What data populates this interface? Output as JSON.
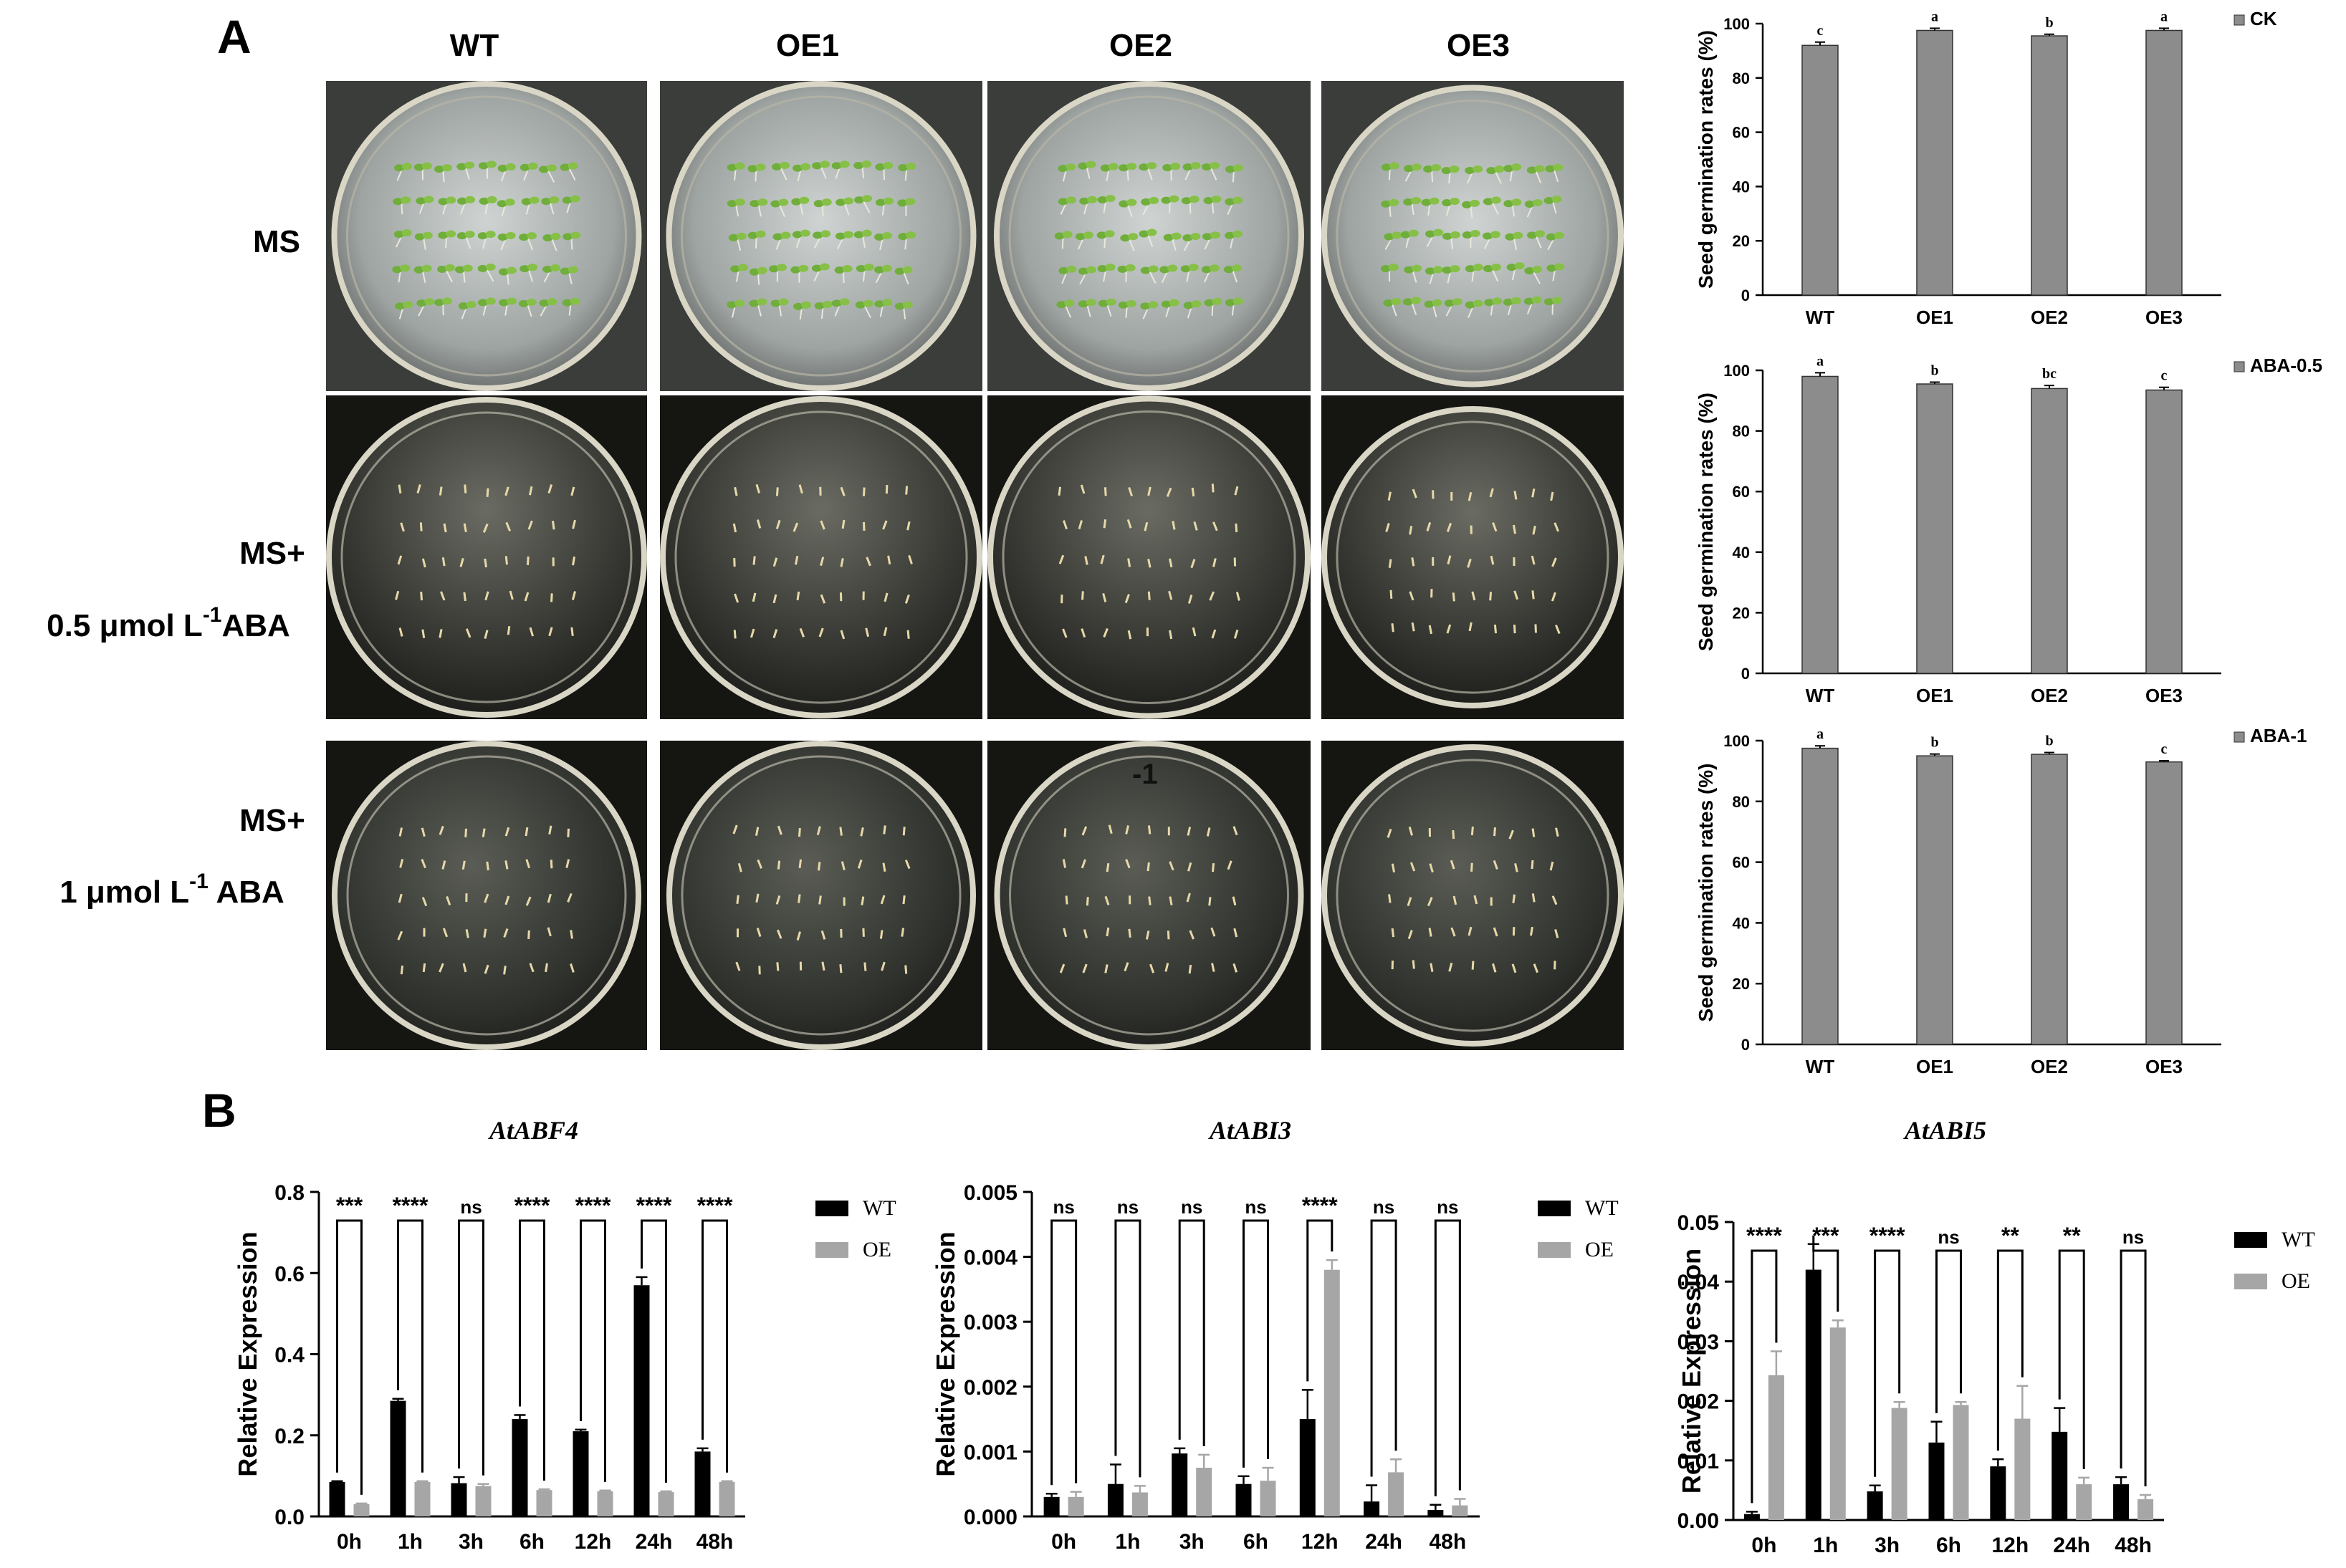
{
  "panel_labels": [
    "A",
    "B"
  ],
  "photo_grid": {
    "columns": [
      "WT",
      "OE1",
      "OE2",
      "OE3"
    ],
    "rows": [
      {
        "label_lines": [
          {
            "text": "MS",
            "sup": ""
          }
        ]
      },
      {
        "label_lines": [
          {
            "text": "MS+",
            "sup": ""
          },
          {
            "text": "0.5 μmol L",
            "sup": "-1",
            "after": "ABA"
          }
        ]
      },
      {
        "label_lines": [
          {
            "text": "MS+",
            "sup": ""
          },
          {
            "text": "1 μmol L",
            "sup": "-1",
            "after": " ABA"
          }
        ]
      }
    ],
    "stray_plate_text": "-1"
  },
  "chart_data": [
    {
      "type": "bar",
      "panel": "A",
      "categories": [
        "WT",
        "OE1",
        "OE2",
        "OE3"
      ],
      "series": [
        {
          "name": "CK",
          "values": [
            92,
            97.5,
            95.5,
            97.5
          ],
          "errors": [
            1.2,
            0.8,
            0.6,
            0.8
          ]
        }
      ],
      "letters": [
        "c",
        "a",
        "b",
        "a"
      ],
      "ylabel": "Seed germination rates (%)",
      "ylim": [
        0,
        100
      ],
      "yticks": [
        0,
        20,
        40,
        60,
        80,
        100
      ],
      "legend_position": "top-right",
      "color": "#8c8c8c"
    },
    {
      "type": "bar",
      "panel": "A",
      "categories": [
        "WT",
        "OE1",
        "OE2",
        "OE3"
      ],
      "series": [
        {
          "name": "ABA-0.5",
          "values": [
            98,
            95.5,
            94,
            93.5
          ],
          "errors": [
            1.2,
            0.6,
            1.0,
            0.9
          ]
        }
      ],
      "letters": [
        "a",
        "b",
        "bc",
        "c"
      ],
      "ylabel": "Seed germination rates (%)",
      "ylim": [
        0,
        100
      ],
      "yticks": [
        0,
        20,
        40,
        60,
        80,
        100
      ],
      "legend_position": "top-right",
      "color": "#8c8c8c"
    },
    {
      "type": "bar",
      "panel": "A",
      "categories": [
        "WT",
        "OE1",
        "OE2",
        "OE3"
      ],
      "series": [
        {
          "name": "ABA-1",
          "values": [
            97.5,
            95,
            95.5,
            93
          ],
          "errors": [
            0.8,
            0.6,
            0.6,
            0.4
          ]
        }
      ],
      "letters": [
        "a",
        "b",
        "b",
        "c"
      ],
      "ylabel": "Seed germination rates (%)",
      "ylim": [
        0,
        100
      ],
      "yticks": [
        0,
        20,
        40,
        60,
        80,
        100
      ],
      "legend_position": "top-right",
      "color": "#8c8c8c"
    },
    {
      "type": "bar",
      "panel": "B",
      "title": "AtABF4",
      "categories": [
        "0h",
        "1h",
        "3h",
        "6h",
        "12h",
        "24h",
        "48h"
      ],
      "series": [
        {
          "name": "WT",
          "values": [
            0.085,
            0.285,
            0.082,
            0.24,
            0.21,
            0.57,
            0.16
          ],
          "errors": [
            0.002,
            0.005,
            0.015,
            0.01,
            0.004,
            0.02,
            0.008
          ]
        },
        {
          "name": "OE",
          "values": [
            0.03,
            0.085,
            0.075,
            0.065,
            0.062,
            0.06,
            0.085
          ],
          "errors": [
            0.002,
            0.002,
            0.005,
            0.002,
            0.002,
            0.002,
            0.002
          ]
        }
      ],
      "significance": [
        "***",
        "****",
        "ns",
        "****",
        "****",
        "****",
        "****"
      ],
      "ylabel": "Relative Expression",
      "ylim": [
        0,
        0.8
      ],
      "yticks": [
        "0.0",
        "0.2",
        "0.4",
        "0.6",
        "0.8"
      ],
      "legend_position": "right",
      "colors": [
        "#000000",
        "#a6a6a6"
      ]
    },
    {
      "type": "bar",
      "panel": "B",
      "title": "AtABI3",
      "categories": [
        "0h",
        "1h",
        "3h",
        "6h",
        "12h",
        "24h",
        "48h"
      ],
      "series": [
        {
          "name": "WT",
          "values": [
            0.0003,
            0.0005,
            0.00097,
            0.0005,
            0.0015,
            0.00023,
            0.0001
          ],
          "errors": [
            5e-05,
            0.0003,
            8e-05,
            0.00012,
            0.00045,
            0.00025,
            8e-05
          ]
        },
        {
          "name": "OE",
          "values": [
            0.0003,
            0.00037,
            0.00075,
            0.00055,
            0.0038,
            0.00068,
            0.00017
          ],
          "errors": [
            8e-05,
            0.0001,
            0.0002,
            0.0002,
            0.00015,
            0.0002,
            0.0001
          ]
        }
      ],
      "significance": [
        "ns",
        "ns",
        "ns",
        "ns",
        "****",
        "ns",
        "ns"
      ],
      "ylabel": "Relative Expression",
      "ylim": [
        0,
        0.005
      ],
      "yticks": [
        "0.000",
        "0.001",
        "0.002",
        "0.003",
        "0.004",
        "0.005"
      ],
      "legend_position": "right",
      "colors": [
        "#000000",
        "#a6a6a6"
      ]
    },
    {
      "type": "bar",
      "panel": "B",
      "title": "AtABI5",
      "categories": [
        "0h",
        "1h",
        "3h",
        "6h",
        "12h",
        "24h",
        "48h"
      ],
      "series": [
        {
          "name": "WT",
          "values": [
            0.001,
            0.042,
            0.0048,
            0.013,
            0.009,
            0.0148,
            0.006
          ],
          "errors": [
            0.0004,
            0.0043,
            0.001,
            0.0035,
            0.0012,
            0.004,
            0.0012
          ]
        },
        {
          "name": "OE",
          "values": [
            0.0243,
            0.0323,
            0.0188,
            0.0193,
            0.017,
            0.006,
            0.0035
          ],
          "errors": [
            0.004,
            0.0012,
            0.001,
            0.0005,
            0.0055,
            0.0011,
            0.0007
          ]
        }
      ],
      "significance": [
        "****",
        "***",
        "****",
        "ns",
        "**",
        "**",
        "ns"
      ],
      "ylabel": "Relative Expression",
      "ylim": [
        0,
        0.05
      ],
      "yticks": [
        "0.00",
        "0.01",
        "0.02",
        "0.03",
        "0.04",
        "0.05"
      ],
      "legend_position": "right",
      "colors": [
        "#000000",
        "#a6a6a6"
      ]
    }
  ]
}
